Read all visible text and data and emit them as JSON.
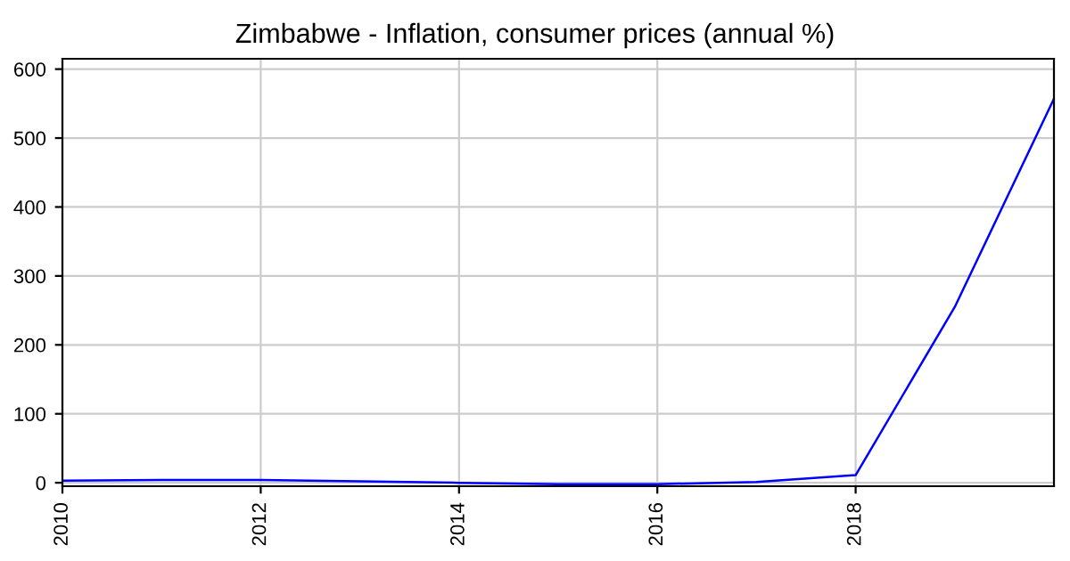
{
  "chart_data": {
    "type": "line",
    "title": "Zimbabwe - Inflation, consumer prices (annual %)",
    "x": [
      2010,
      2011,
      2012,
      2013,
      2014,
      2015,
      2016,
      2017,
      2018,
      2019,
      2020
    ],
    "series": [
      {
        "color": "#0000ff",
        "values": [
          3,
          4,
          4,
          2,
          0,
          -2,
          -2,
          1,
          11,
          255,
          557
        ]
      }
    ],
    "xlim": [
      2010,
      2020
    ],
    "xticks": [
      2010,
      2012,
      2014,
      2016,
      2018
    ],
    "ylim": [
      -5,
      615
    ],
    "yticks": [
      0,
      100,
      200,
      300,
      400,
      500,
      600
    ],
    "grid": true
  }
}
